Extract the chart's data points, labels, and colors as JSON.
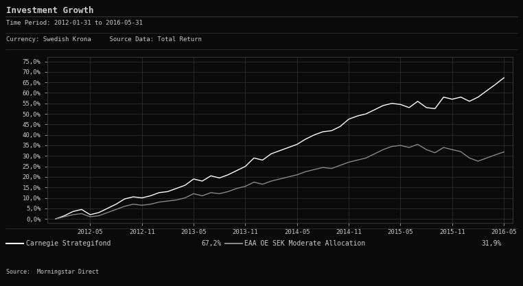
{
  "title": "Investment Growth",
  "subtitle1": "Time Period: 2012-01-31 to 2016-05-31",
  "subtitle2": "Currency: Swedish Krona     Source Data: Total Return",
  "source": "Source:  Morningstar Direct",
  "legend1_label": "Carnegie Strategifond",
  "legend1_value": "67,2%",
  "legend2_label": "EAA OE SEK Moderate Allocation",
  "legend2_value": "31,9%",
  "yticks": [
    0.0,
    5.0,
    10.0,
    15.0,
    20.0,
    25.0,
    30.0,
    35.0,
    40.0,
    45.0,
    50.0,
    55.0,
    60.0,
    65.0,
    70.0,
    75.0
  ],
  "ylim": [
    -2.0,
    77.0
  ],
  "background_color": "#0a0a0a",
  "text_color": "#cccccc",
  "grid_color": "#333333",
  "line1_color": "#ffffff",
  "line2_color": "#888888",
  "line1_values": [
    0.0,
    1.5,
    3.5,
    4.5,
    2.0,
    3.0,
    5.0,
    7.0,
    9.5,
    10.5,
    10.0,
    11.0,
    12.5,
    13.0,
    14.5,
    16.0,
    19.0,
    18.0,
    20.5,
    19.5,
    21.0,
    23.0,
    25.0,
    29.0,
    28.0,
    31.0,
    32.5,
    34.0,
    35.5,
    38.0,
    40.0,
    41.5,
    42.0,
    44.0,
    47.5,
    49.0,
    50.0,
    52.0,
    54.0,
    55.0,
    54.5,
    53.0,
    56.0,
    53.0,
    52.5,
    58.0,
    57.0,
    58.0,
    56.0,
    58.0,
    61.0,
    64.0,
    67.2
  ],
  "line2_values": [
    0.0,
    1.0,
    2.0,
    2.5,
    1.0,
    1.5,
    3.0,
    4.5,
    6.0,
    7.0,
    6.5,
    7.0,
    8.0,
    8.5,
    9.0,
    10.0,
    12.0,
    11.0,
    12.5,
    12.0,
    13.0,
    14.5,
    15.5,
    17.5,
    16.5,
    18.0,
    19.0,
    20.0,
    21.0,
    22.5,
    23.5,
    24.5,
    24.0,
    25.5,
    27.0,
    28.0,
    29.0,
    31.0,
    33.0,
    34.5,
    35.0,
    34.0,
    35.5,
    33.0,
    31.5,
    34.0,
    33.0,
    32.0,
    29.0,
    27.5,
    29.0,
    30.5,
    31.9
  ],
  "xtick_positions": [
    4,
    10,
    16,
    22,
    28,
    34,
    40,
    46,
    52
  ],
  "xtick_labels": [
    "2012-05",
    "2012-11",
    "2013-05",
    "2013-11",
    "2014-05",
    "2014-11",
    "2015-05",
    "2015-11",
    "2016-05"
  ]
}
